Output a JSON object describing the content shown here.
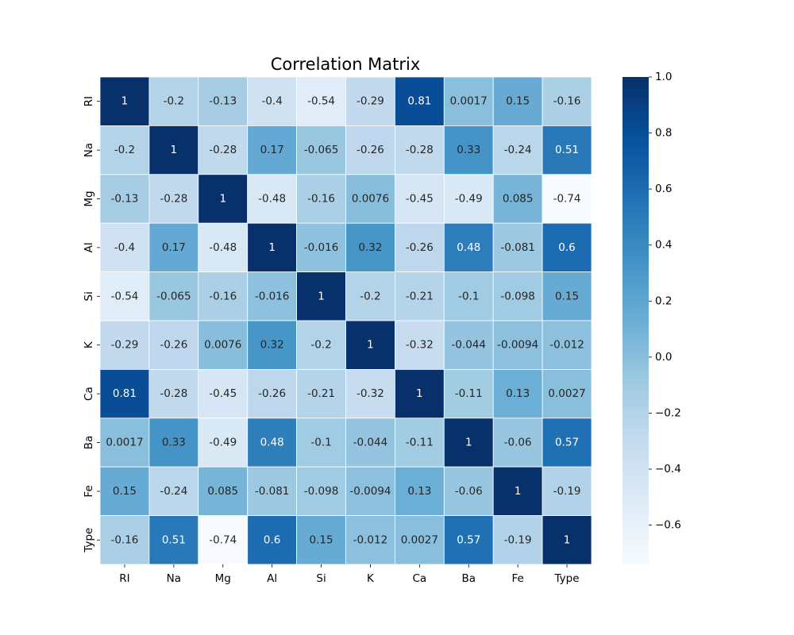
{
  "chart_data": {
    "type": "heatmap",
    "title": "Correlation Matrix",
    "labels": [
      "RI",
      "Na",
      "Mg",
      "Al",
      "Si",
      "K",
      "Ca",
      "Ba",
      "Fe",
      "Type"
    ],
    "value_labels": [
      [
        "1",
        "-0.2",
        "-0.13",
        "-0.4",
        "-0.54",
        "-0.29",
        "0.81",
        "0.0017",
        "0.15",
        "-0.16"
      ],
      [
        "-0.2",
        "1",
        "-0.28",
        "0.17",
        "-0.065",
        "-0.26",
        "-0.28",
        "0.33",
        "-0.24",
        "0.51"
      ],
      [
        "-0.13",
        "-0.28",
        "1",
        "-0.48",
        "-0.16",
        "0.0076",
        "-0.45",
        "-0.49",
        "0.085",
        "-0.74"
      ],
      [
        "-0.4",
        "0.17",
        "-0.48",
        "1",
        "-0.016",
        "0.32",
        "-0.26",
        "0.48",
        "-0.081",
        "0.6"
      ],
      [
        "-0.54",
        "-0.065",
        "-0.16",
        "-0.016",
        "1",
        "-0.2",
        "-0.21",
        "-0.1",
        "-0.098",
        "0.15"
      ],
      [
        "-0.29",
        "-0.26",
        "0.0076",
        "0.32",
        "-0.2",
        "1",
        "-0.32",
        "-0.044",
        "-0.0094",
        "-0.012"
      ],
      [
        "0.81",
        "-0.28",
        "-0.45",
        "-0.26",
        "-0.21",
        "-0.32",
        "1",
        "-0.11",
        "0.13",
        "0.0027"
      ],
      [
        "0.0017",
        "0.33",
        "-0.49",
        "0.48",
        "-0.1",
        "-0.044",
        "-0.11",
        "1",
        "-0.06",
        "0.57"
      ],
      [
        "0.15",
        "-0.24",
        "0.085",
        "-0.081",
        "-0.098",
        "-0.0094",
        "0.13",
        "-0.06",
        "1",
        "-0.19"
      ],
      [
        "-0.16",
        "0.51",
        "-0.74",
        "0.6",
        "0.15",
        "-0.012",
        "0.0027",
        "0.57",
        "-0.19",
        "1"
      ]
    ],
    "colormap": "Blues",
    "vmin": -0.74,
    "vmax": 1.0,
    "colorbar_ticks": [
      1.0,
      0.8,
      0.6,
      0.4,
      0.2,
      0.0,
      -0.2,
      -0.4,
      -0.6
    ],
    "colorbar_tick_labels": [
      "1.0",
      "0.8",
      "0.6",
      "0.4",
      "0.2",
      "0.0",
      "−0.2",
      "−0.4",
      "−0.6"
    ],
    "grid": false,
    "legend": "colorbar-right"
  }
}
